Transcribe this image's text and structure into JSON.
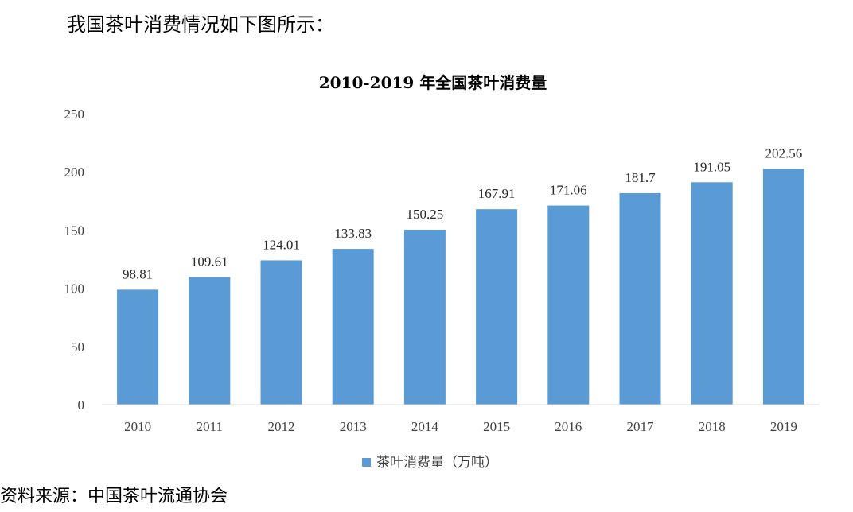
{
  "intro_text": "我国茶叶消费情况如下图所示：",
  "source_text": "资料来源：中国茶叶流通协会",
  "colors": {
    "bar": "#5B9BD5",
    "axis": "#D9D9D9"
  },
  "chart_data": {
    "type": "bar",
    "title": "2010-2019 年全国茶叶消费量",
    "categories": [
      "2010",
      "2011",
      "2012",
      "2013",
      "2014",
      "2015",
      "2016",
      "2017",
      "2018",
      "2019"
    ],
    "series": [
      {
        "name": "茶叶消费量（万吨）",
        "values": [
          98.81,
          109.61,
          124.01,
          133.83,
          150.25,
          167.91,
          171.06,
          181.7,
          191.05,
          202.56
        ],
        "labels": [
          "98.81",
          "109.61",
          "124.01",
          "133.83",
          "150.25",
          "167.91",
          "171.06",
          "181.7",
          "191.05",
          "202.56"
        ]
      }
    ],
    "ylim": [
      0,
      250
    ],
    "yticks": [
      "0",
      "50",
      "100",
      "150",
      "200",
      "250"
    ],
    "xlabel": "",
    "ylabel": "",
    "grid": false,
    "legend_position": "bottom"
  }
}
